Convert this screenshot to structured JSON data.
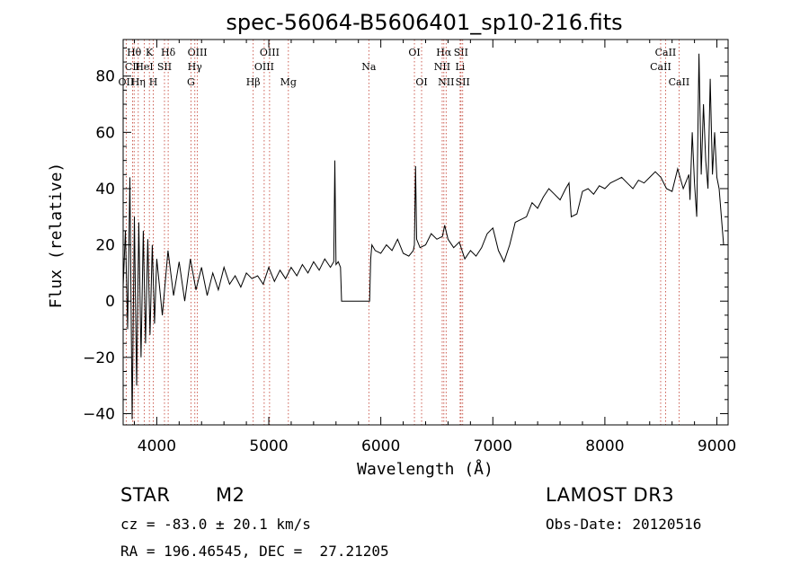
{
  "chart_data": {
    "type": "line",
    "title": "spec-56064-B5606401_sp10-216.fits",
    "xlabel": "Wavelength (Å)",
    "ylabel": "Flux (relative)",
    "xlim": [
      3700,
      9100
    ],
    "ylim": [
      -44,
      93
    ],
    "xticks": [
      4000,
      5000,
      6000,
      7000,
      8000,
      9000
    ],
    "yticks": [
      -40,
      -20,
      0,
      20,
      40,
      60,
      80
    ],
    "series": [
      {
        "name": "flux",
        "x": [
          3700,
          3720,
          3740,
          3760,
          3780,
          3800,
          3820,
          3840,
          3860,
          3880,
          3900,
          3920,
          3940,
          3960,
          3980,
          4000,
          4050,
          4100,
          4150,
          4200,
          4250,
          4300,
          4350,
          4400,
          4450,
          4500,
          4550,
          4600,
          4650,
          4700,
          4750,
          4800,
          4850,
          4900,
          4950,
          5000,
          5050,
          5100,
          5150,
          5200,
          5250,
          5300,
          5350,
          5400,
          5450,
          5500,
          5550,
          5580,
          5590,
          5600,
          5620,
          5640,
          5650,
          5700,
          5800,
          5900,
          5910,
          5920,
          5950,
          6000,
          6050,
          6100,
          6150,
          6200,
          6250,
          6290,
          6300,
          6310,
          6320,
          6350,
          6400,
          6450,
          6500,
          6550,
          6570,
          6600,
          6650,
          6700,
          6750,
          6800,
          6850,
          6900,
          6950,
          7000,
          7050,
          7100,
          7150,
          7200,
          7250,
          7300,
          7350,
          7400,
          7450,
          7500,
          7550,
          7600,
          7650,
          7680,
          7700,
          7750,
          7800,
          7850,
          7900,
          7950,
          8000,
          8050,
          8100,
          8150,
          8200,
          8250,
          8300,
          8350,
          8400,
          8450,
          8500,
          8550,
          8600,
          8650,
          8700,
          8750,
          8760,
          8780,
          8800,
          8820,
          8840,
          8860,
          8880,
          8900,
          8920,
          8940,
          8960,
          8980,
          9000,
          9020,
          9040,
          9060
        ],
        "values": [
          5,
          25,
          -10,
          44,
          -42,
          30,
          -30,
          28,
          -20,
          25,
          -15,
          22,
          -12,
          20,
          -8,
          15,
          -5,
          18,
          2,
          14,
          0,
          15,
          4,
          12,
          2,
          10,
          4,
          12,
          6,
          9,
          5,
          10,
          8,
          9,
          6,
          12,
          7,
          11,
          8,
          12,
          9,
          13,
          10,
          14,
          11,
          15,
          12,
          14,
          50,
          13,
          14,
          12,
          0,
          0,
          0,
          0,
          15,
          20,
          18,
          17,
          20,
          18,
          22,
          17,
          16,
          18,
          20,
          48,
          22,
          19,
          20,
          24,
          22,
          23,
          27,
          22,
          19,
          21,
          15,
          18,
          16,
          19,
          24,
          26,
          18,
          14,
          20,
          28,
          29,
          30,
          35,
          33,
          37,
          40,
          38,
          36,
          40,
          42,
          30,
          31,
          39,
          40,
          38,
          41,
          40,
          42,
          43,
          44,
          42,
          40,
          43,
          42,
          44,
          46,
          44,
          40,
          39,
          47,
          40,
          45,
          36,
          60,
          42,
          30,
          88,
          45,
          70,
          50,
          40,
          79,
          45,
          60,
          44,
          40,
          30,
          20
        ]
      }
    ],
    "spectral_lines": [
      {
        "label": "Hθ",
        "x": 3798,
        "row": 1
      },
      {
        "label": "CII",
        "x": 3784,
        "row": 2
      },
      {
        "label": "OII",
        "x": 3727,
        "row": 3
      },
      {
        "label": "K",
        "x": 3934,
        "row": 1
      },
      {
        "label": "HeI",
        "x": 3889,
        "row": 2
      },
      {
        "label": "Hη",
        "x": 3835,
        "row": 3
      },
      {
        "label": "Hδ",
        "x": 4102,
        "row": 1
      },
      {
        "label": "SII",
        "x": 4069,
        "row": 2
      },
      {
        "label": "H",
        "x": 3969,
        "row": 3
      },
      {
        "label": "OIII",
        "x": 4363,
        "row": 1
      },
      {
        "label": "Hγ",
        "x": 4340,
        "row": 2
      },
      {
        "label": "G",
        "x": 4305,
        "row": 3
      },
      {
        "label": "OIII",
        "x": 5007,
        "row": 1
      },
      {
        "label": "OIII",
        "x": 4959,
        "row": 2
      },
      {
        "label": "Hβ",
        "x": 4861,
        "row": 3
      },
      {
        "label": "Mg",
        "x": 5175,
        "row": 3
      },
      {
        "label": "Na",
        "x": 5893,
        "row": 2
      },
      {
        "label": "OI",
        "x": 6300,
        "row": 1
      },
      {
        "label": "OI",
        "x": 6364,
        "row": 3
      },
      {
        "label": "Hα",
        "x": 6563,
        "row": 1
      },
      {
        "label": "SII",
        "x": 6716,
        "row": 1
      },
      {
        "label": "NII",
        "x": 6548,
        "row": 2
      },
      {
        "label": "Li",
        "x": 6708,
        "row": 2
      },
      {
        "label": "NII",
        "x": 6583,
        "row": 3
      },
      {
        "label": "SII",
        "x": 6731,
        "row": 3
      },
      {
        "label": "CaII",
        "x": 8542,
        "row": 1
      },
      {
        "label": "CaII",
        "x": 8498,
        "row": 2
      },
      {
        "label": "CaII",
        "x": 8662,
        "row": 3
      }
    ]
  },
  "info": {
    "object_class": "STAR",
    "subclass": "M2",
    "survey": "LAMOST DR3",
    "cz": "cz = -83.0 ± 20.1 km/s",
    "obs_date": "Obs-Date: 20120516",
    "coords": "RA = 196.46545, DEC =  27.21205"
  }
}
